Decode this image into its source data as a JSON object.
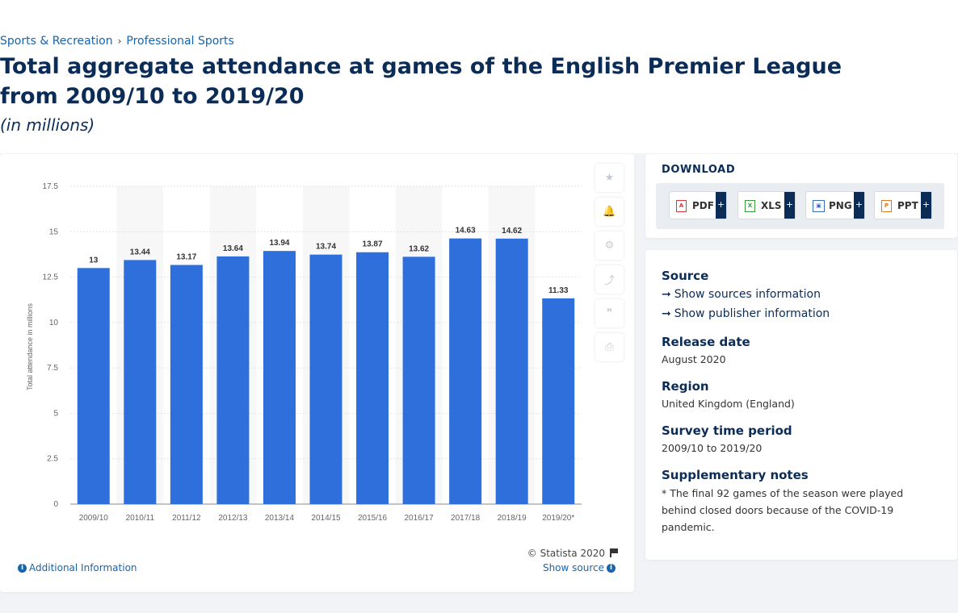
{
  "breadcrumb": {
    "items": [
      "Sports & Recreation",
      "Professional Sports"
    ]
  },
  "page": {
    "title": "Total aggregate attendance at games of the English Premier League from 2009/10 to 2019/20",
    "subtitle": "(in millions)"
  },
  "chart_data": {
    "type": "bar",
    "title": "",
    "xlabel": "",
    "ylabel": "Total attendance in millions",
    "categories": [
      "2009/10",
      "2010/11",
      "2011/12",
      "2012/13",
      "2013/14",
      "2014/15",
      "2015/16",
      "2016/17",
      "2017/18",
      "2018/19",
      "2019/20*"
    ],
    "values": [
      13,
      13.44,
      13.17,
      13.64,
      13.94,
      13.74,
      13.87,
      13.62,
      14.63,
      14.62,
      11.33
    ],
    "value_labels": [
      "13",
      "13.44",
      "13.17",
      "13.64",
      "13.94",
      "13.74",
      "13.87",
      "13.62",
      "14.63",
      "14.62",
      "11.33"
    ],
    "ylim": [
      0,
      17.5
    ],
    "yticks": [
      "0",
      "2.5",
      "5",
      "7.5",
      "10",
      "12.5",
      "15",
      "17.5"
    ],
    "grid": true,
    "bar_color": "#2f6fdc"
  },
  "chart_footer": {
    "copyright": "© Statista 2020",
    "additional_info": "Additional Information",
    "show_source": "Show source"
  },
  "side_tools": [
    {
      "icon": "star-icon",
      "glyph": "★"
    },
    {
      "icon": "bell-icon",
      "glyph": "🔔"
    },
    {
      "icon": "gear-icon",
      "glyph": "⚙"
    },
    {
      "icon": "share-icon",
      "glyph": "⤴"
    },
    {
      "icon": "quote-icon",
      "glyph": "❞"
    },
    {
      "icon": "print-icon",
      "glyph": "⎙"
    }
  ],
  "download": {
    "label": "DOWNLOAD",
    "buttons": [
      {
        "label": "PDF",
        "icon": "pdf-file-icon",
        "color": "#d9383a"
      },
      {
        "label": "XLS",
        "icon": "xls-file-icon",
        "color": "#3a9b3a"
      },
      {
        "label": "PNG",
        "icon": "png-file-icon",
        "color": "#3a6fb5"
      },
      {
        "label": "PPT",
        "icon": "ppt-file-icon",
        "color": "#e07a24"
      }
    ],
    "plus": "+"
  },
  "info": {
    "source_heading": "Source",
    "show_sources": "Show sources information",
    "show_publisher": "Show publisher information",
    "release_heading": "Release date",
    "release_value": "August 2020",
    "region_heading": "Region",
    "region_value": "United Kingdom (England)",
    "survey_heading": "Survey time period",
    "survey_value": "2009/10 to 2019/20",
    "notes_heading": "Supplementary notes",
    "notes_value": "* The final 92 games of the season were played behind closed doors because of the COVID-19 pandemic."
  }
}
